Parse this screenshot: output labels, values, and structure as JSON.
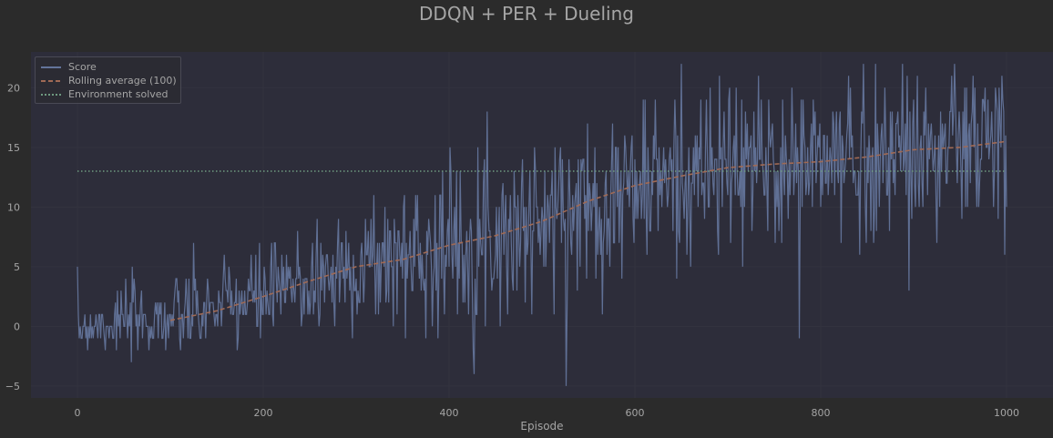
{
  "title": "DDQN + PER + Dueling",
  "chart_data": {
    "type": "line",
    "title": "DDQN + PER + Dueling",
    "xlabel": "Episode",
    "ylabel": "",
    "xlim": [
      -50,
      1050
    ],
    "ylim": [
      -6,
      23
    ],
    "xticks": [
      0,
      200,
      400,
      600,
      800,
      1000
    ],
    "yticks": [
      -5,
      0,
      5,
      10,
      15,
      20
    ],
    "grid": true,
    "legend_position": "top-left",
    "series": [
      {
        "name": "Score",
        "style": "solid",
        "color": "#63749a",
        "episodes": [
          0,
          1000
        ],
        "trend_x": [
          0,
          100,
          200,
          300,
          400,
          500,
          600,
          700,
          800,
          900,
          1000
        ],
        "trend_y": [
          0.2,
          0.6,
          2.5,
          5.0,
          6.8,
          8.8,
          11.8,
          13.3,
          13.8,
          14.8,
          15.5
        ],
        "noise_sd": [
          1.3,
          1.6,
          2.2,
          2.8,
          3.3,
          3.5,
          3.6,
          3.6,
          3.7,
          3.7,
          3.7
        ],
        "seed": 7
      },
      {
        "name": "Rolling average (100)",
        "style": "dashed",
        "color": "#a06a55",
        "x": [
          100,
          150,
          200,
          250,
          300,
          350,
          400,
          450,
          500,
          550,
          600,
          650,
          700,
          750,
          800,
          850,
          900,
          950,
          1000
        ],
        "y": [
          0.5,
          1.3,
          2.5,
          3.8,
          5.0,
          5.6,
          6.8,
          7.6,
          8.8,
          10.5,
          11.8,
          12.6,
          13.3,
          13.6,
          13.8,
          14.2,
          14.8,
          15.0,
          15.5
        ]
      },
      {
        "name": "Environment solved",
        "style": "dotted",
        "color": "#6e9a80",
        "x": [
          0,
          1000
        ],
        "y": [
          13,
          13
        ]
      }
    ]
  }
}
